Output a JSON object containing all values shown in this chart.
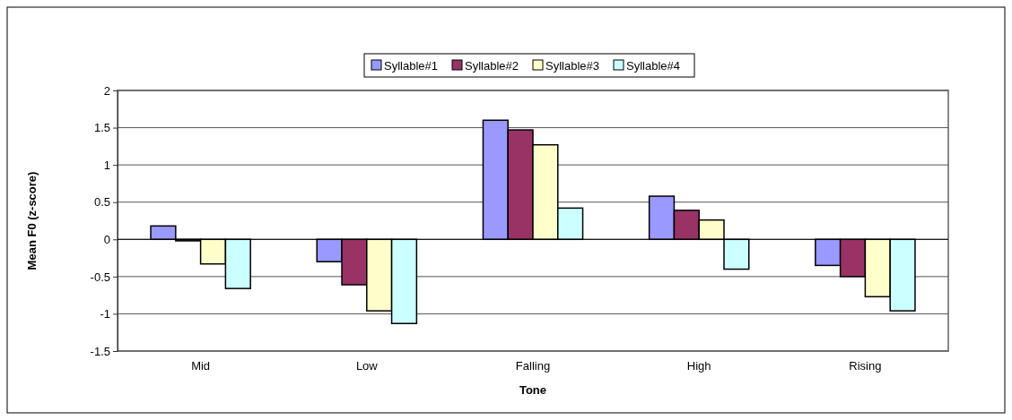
{
  "chart_data": {
    "type": "bar",
    "xlabel": "Tone",
    "ylabel": "Mean F0 (z-score)",
    "categories": [
      "Mid",
      "Low",
      "Falling",
      "High",
      "Rising"
    ],
    "series": [
      {
        "name": "Syllable#1",
        "color": "#9999ff",
        "values": [
          0.18,
          -0.3,
          1.6,
          0.58,
          -0.35
        ]
      },
      {
        "name": "Syllable#2",
        "color": "#993366",
        "values": [
          -0.02,
          -0.61,
          1.47,
          0.39,
          -0.5
        ]
      },
      {
        "name": "Syllable#3",
        "color": "#ffffcc",
        "values": [
          -0.33,
          -0.96,
          1.27,
          0.26,
          -0.77
        ]
      },
      {
        "name": "Syllable#4",
        "color": "#ccffff",
        "values": [
          -0.66,
          -1.13,
          0.42,
          -0.4,
          -0.96
        ]
      }
    ],
    "ylim": [
      -1.5,
      2
    ],
    "yticks": [
      -1.5,
      -1,
      -0.5,
      0,
      0.5,
      1,
      1.5,
      2
    ],
    "grid": "y",
    "legend": "top"
  }
}
